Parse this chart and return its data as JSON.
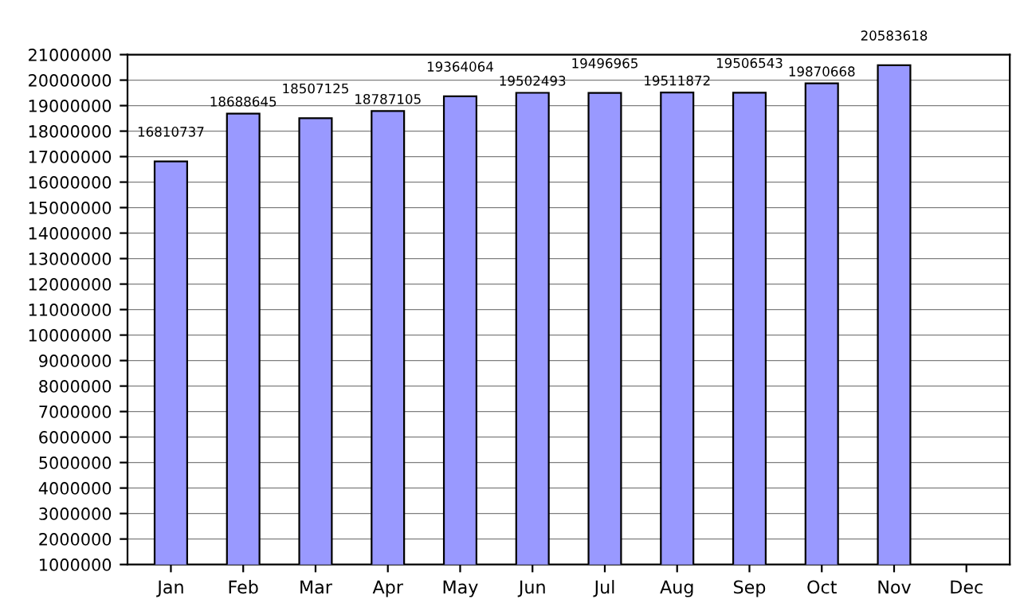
{
  "chart_data": {
    "type": "bar",
    "categories": [
      "Jan",
      "Feb",
      "Mar",
      "Apr",
      "May",
      "Jun",
      "Jul",
      "Aug",
      "Sep",
      "Oct",
      "Nov",
      "Dec"
    ],
    "values": [
      16810737,
      18688645,
      18507125,
      18787105,
      19364064,
      19502493,
      19496965,
      19511872,
      19506543,
      19870668,
      20583618,
      null
    ],
    "color": "#9999ff",
    "ylim": [
      1000000,
      21000000
    ],
    "yticks": [
      1000000,
      2000000,
      3000000,
      4000000,
      5000000,
      6000000,
      7000000,
      8000000,
      9000000,
      10000000,
      11000000,
      12000000,
      13000000,
      14000000,
      15000000,
      16000000,
      17000000,
      18000000,
      19000000,
      20000000,
      21000000
    ],
    "grid": "y",
    "data_labels": true
  }
}
